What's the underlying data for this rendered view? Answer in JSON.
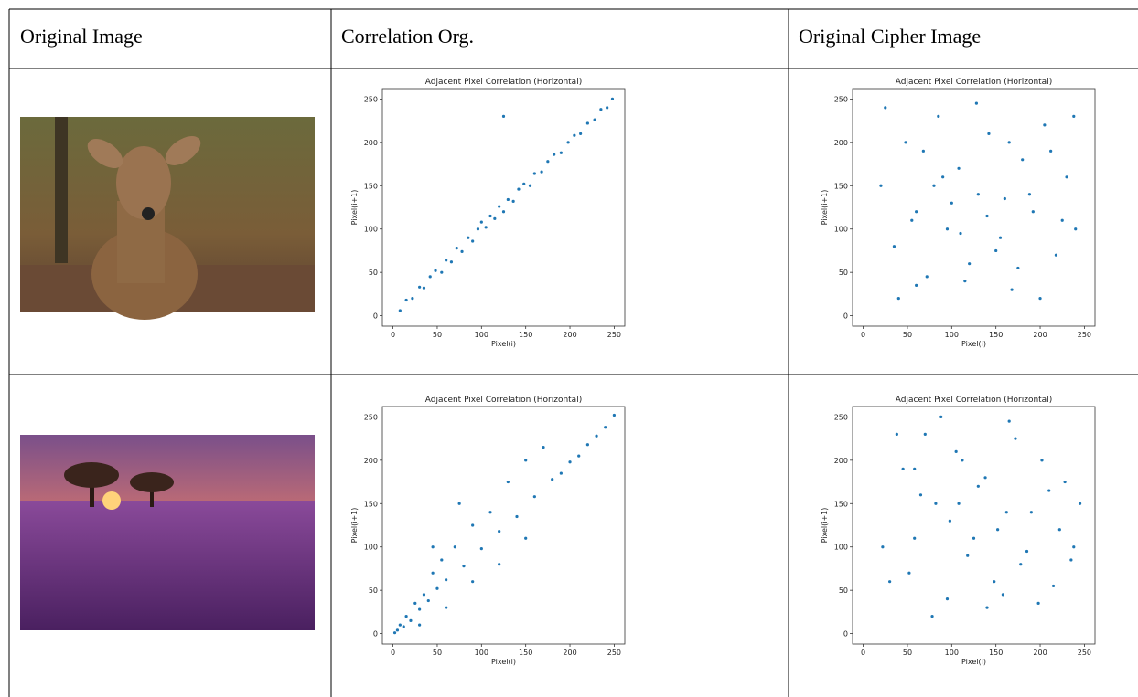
{
  "table": {
    "headers": [
      "Original Image",
      "Correlation Org.",
      "Original Cipher Image"
    ]
  },
  "chart_data": [
    {
      "type": "scatter",
      "title": "Adjacent Pixel Correlation (Horizontal)",
      "x_label": "Pixel(i)",
      "y_label": "Pixel(i+1)",
      "color": "#1f77b4",
      "xlim": [
        -12,
        262
      ],
      "ylim": [
        -12,
        262
      ],
      "xticks": [
        0,
        50,
        100,
        150,
        200,
        250
      ],
      "yticks": [
        0,
        50,
        100,
        150,
        200,
        250
      ],
      "x": [
        8,
        15,
        22,
        30,
        35,
        42,
        48,
        55,
        60,
        66,
        72,
        78,
        85,
        90,
        96,
        100,
        105,
        110,
        115,
        120,
        125,
        130,
        136,
        142,
        148,
        155,
        160,
        168,
        175,
        182,
        190,
        198,
        205,
        212,
        220,
        228,
        235,
        242,
        248,
        125
      ],
      "y": [
        6,
        18,
        20,
        33,
        32,
        45,
        52,
        50,
        64,
        62,
        78,
        74,
        90,
        86,
        100,
        108,
        102,
        115,
        112,
        126,
        120,
        134,
        132,
        146,
        152,
        150,
        164,
        166,
        178,
        186,
        188,
        200,
        208,
        210,
        222,
        226,
        238,
        240,
        250,
        230
      ]
    },
    {
      "type": "scatter",
      "title": "Adjacent Pixel Correlation (Horizontal)",
      "x_label": "Pixel(i)",
      "y_label": "Pixel(i+1)",
      "color": "#1f77b4",
      "xlim": [
        -12,
        262
      ],
      "ylim": [
        -12,
        262
      ],
      "xticks": [
        0,
        50,
        100,
        150,
        200,
        250
      ],
      "yticks": [
        0,
        50,
        100,
        150,
        200,
        250
      ],
      "x": [
        20,
        35,
        48,
        60,
        72,
        85,
        95,
        108,
        120,
        130,
        142,
        155,
        168,
        180,
        192,
        205,
        218,
        230,
        240,
        25,
        40,
        55,
        68,
        80,
        100,
        115,
        128,
        140,
        150,
        165,
        175,
        188,
        200,
        212,
        225,
        238,
        110,
        90,
        160,
        60
      ],
      "y": [
        150,
        80,
        200,
        120,
        45,
        230,
        100,
        170,
        60,
        140,
        210,
        90,
        30,
        180,
        120,
        220,
        70,
        160,
        100,
        240,
        20,
        110,
        190,
        150,
        130,
        40,
        245,
        115,
        75,
        200,
        55,
        140,
        20,
        190,
        110,
        230,
        95,
        160,
        135,
        35
      ]
    },
    {
      "type": "scatter",
      "title": "Adjacent Pixel Correlation (Horizontal)",
      "x_label": "Pixel(i)",
      "y_label": "Pixel(i+1)",
      "color": "#1f77b4",
      "xlim": [
        -12,
        262
      ],
      "ylim": [
        -12,
        262
      ],
      "xticks": [
        0,
        50,
        100,
        150,
        200,
        250
      ],
      "yticks": [
        0,
        50,
        100,
        150,
        200,
        250
      ],
      "x": [
        2,
        5,
        8,
        12,
        15,
        20,
        25,
        30,
        35,
        40,
        45,
        50,
        55,
        60,
        70,
        80,
        90,
        100,
        110,
        120,
        130,
        140,
        150,
        160,
        170,
        180,
        190,
        200,
        210,
        220,
        230,
        240,
        250,
        30,
        60,
        90,
        120,
        150,
        45,
        75
      ],
      "y": [
        1,
        4,
        10,
        8,
        20,
        15,
        35,
        28,
        45,
        38,
        70,
        52,
        85,
        62,
        100,
        78,
        125,
        98,
        140,
        118,
        175,
        135,
        200,
        158,
        215,
        178,
        185,
        198,
        205,
        218,
        228,
        238,
        252,
        10,
        30,
        60,
        80,
        110,
        100,
        150
      ]
    },
    {
      "type": "scatter",
      "title": "Adjacent Pixel Correlation (Horizontal)",
      "x_label": "Pixel(i)",
      "y_label": "Pixel(i+1)",
      "color": "#1f77b4",
      "xlim": [
        -12,
        262
      ],
      "ylim": [
        -12,
        262
      ],
      "xticks": [
        0,
        50,
        100,
        150,
        200,
        250
      ],
      "yticks": [
        0,
        50,
        100,
        150,
        200,
        250
      ],
      "x": [
        30,
        45,
        58,
        70,
        82,
        95,
        105,
        118,
        130,
        140,
        152,
        165,
        178,
        190,
        202,
        215,
        228,
        238,
        245,
        22,
        38,
        52,
        65,
        78,
        98,
        112,
        125,
        138,
        148,
        162,
        172,
        185,
        198,
        210,
        222,
        235,
        108,
        88,
        158,
        58
      ],
      "y": [
        60,
        190,
        110,
        230,
        150,
        40,
        210,
        90,
        170,
        30,
        120,
        245,
        80,
        140,
        200,
        55,
        175,
        100,
        150,
        100,
        230,
        70,
        160,
        20,
        130,
        200,
        110,
        180,
        60,
        140,
        225,
        95,
        35,
        165,
        120,
        85,
        150,
        250,
        45,
        190
      ]
    }
  ]
}
